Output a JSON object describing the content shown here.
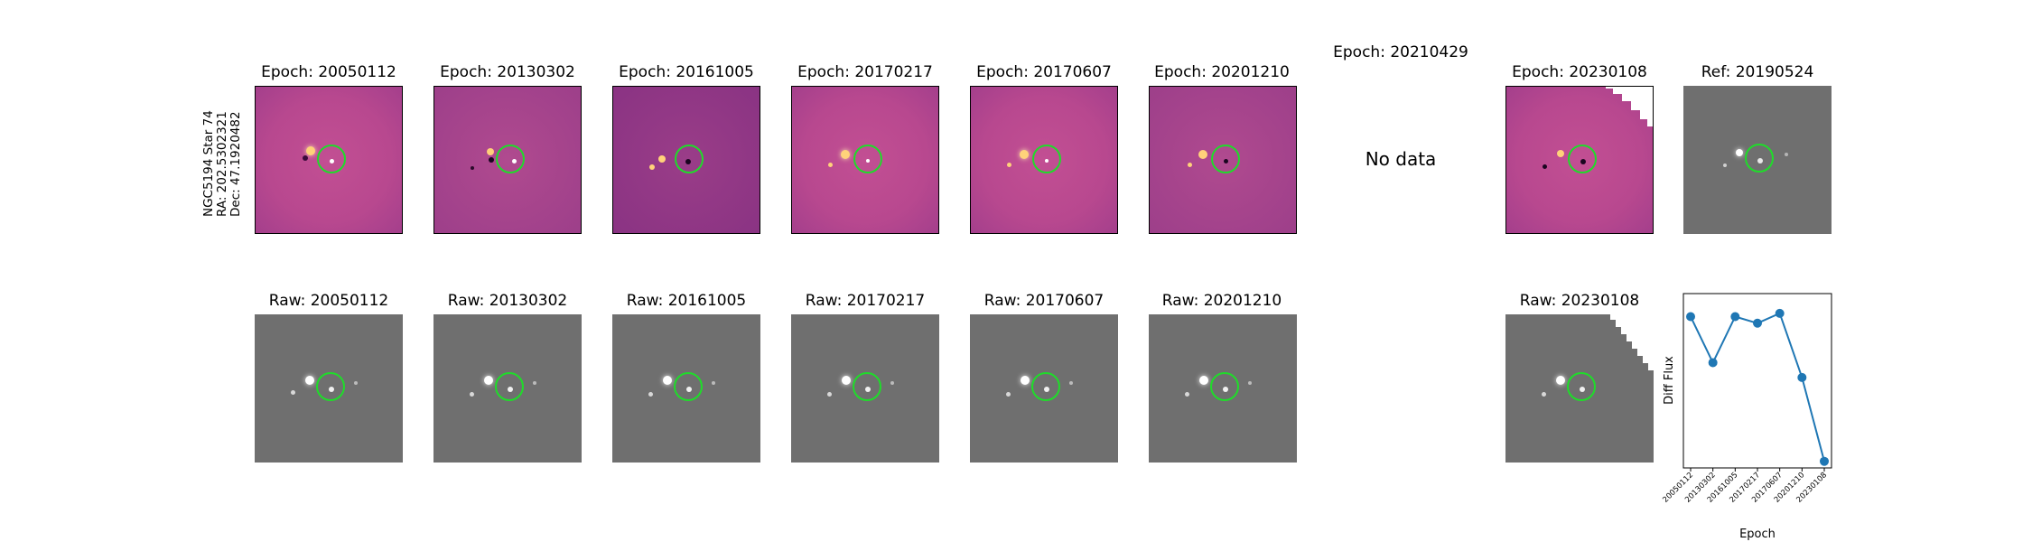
{
  "star_info": {
    "name": "NGC5194 Star 74",
    "ra": "RA: 202.5302321",
    "dec": "Dec: 47.1920482"
  },
  "diff_titles": [
    "Epoch: 20050112",
    "Epoch: 20130302",
    "Epoch: 20161005",
    "Epoch: 20170217",
    "Epoch: 20170607",
    "Epoch: 20201210",
    "Epoch: 20210429",
    "Epoch: 20230108"
  ],
  "ref_title": "Ref: 20190524",
  "no_data_text": "No data",
  "raw_titles": [
    "Raw: 20050112",
    "Raw: 20130302",
    "Raw: 20161005",
    "Raw: 20170217",
    "Raw: 20170607",
    "Raw: 20201210",
    "Raw: 20230108"
  ],
  "chart_data": {
    "type": "line",
    "title": "",
    "xlabel": "Epoch",
    "ylabel": "Diff Flux",
    "categories": [
      "20050112",
      "20130302",
      "20161005",
      "20170217",
      "20170607",
      "20201210",
      "20230108"
    ],
    "values": [
      0.86,
      0.58,
      0.86,
      0.82,
      0.88,
      0.49,
      -0.02
    ],
    "ylim": [
      -0.06,
      1.0
    ],
    "marker_color": "#1f77b4",
    "line_color": "#1f77b4",
    "ticks_shown": false
  }
}
